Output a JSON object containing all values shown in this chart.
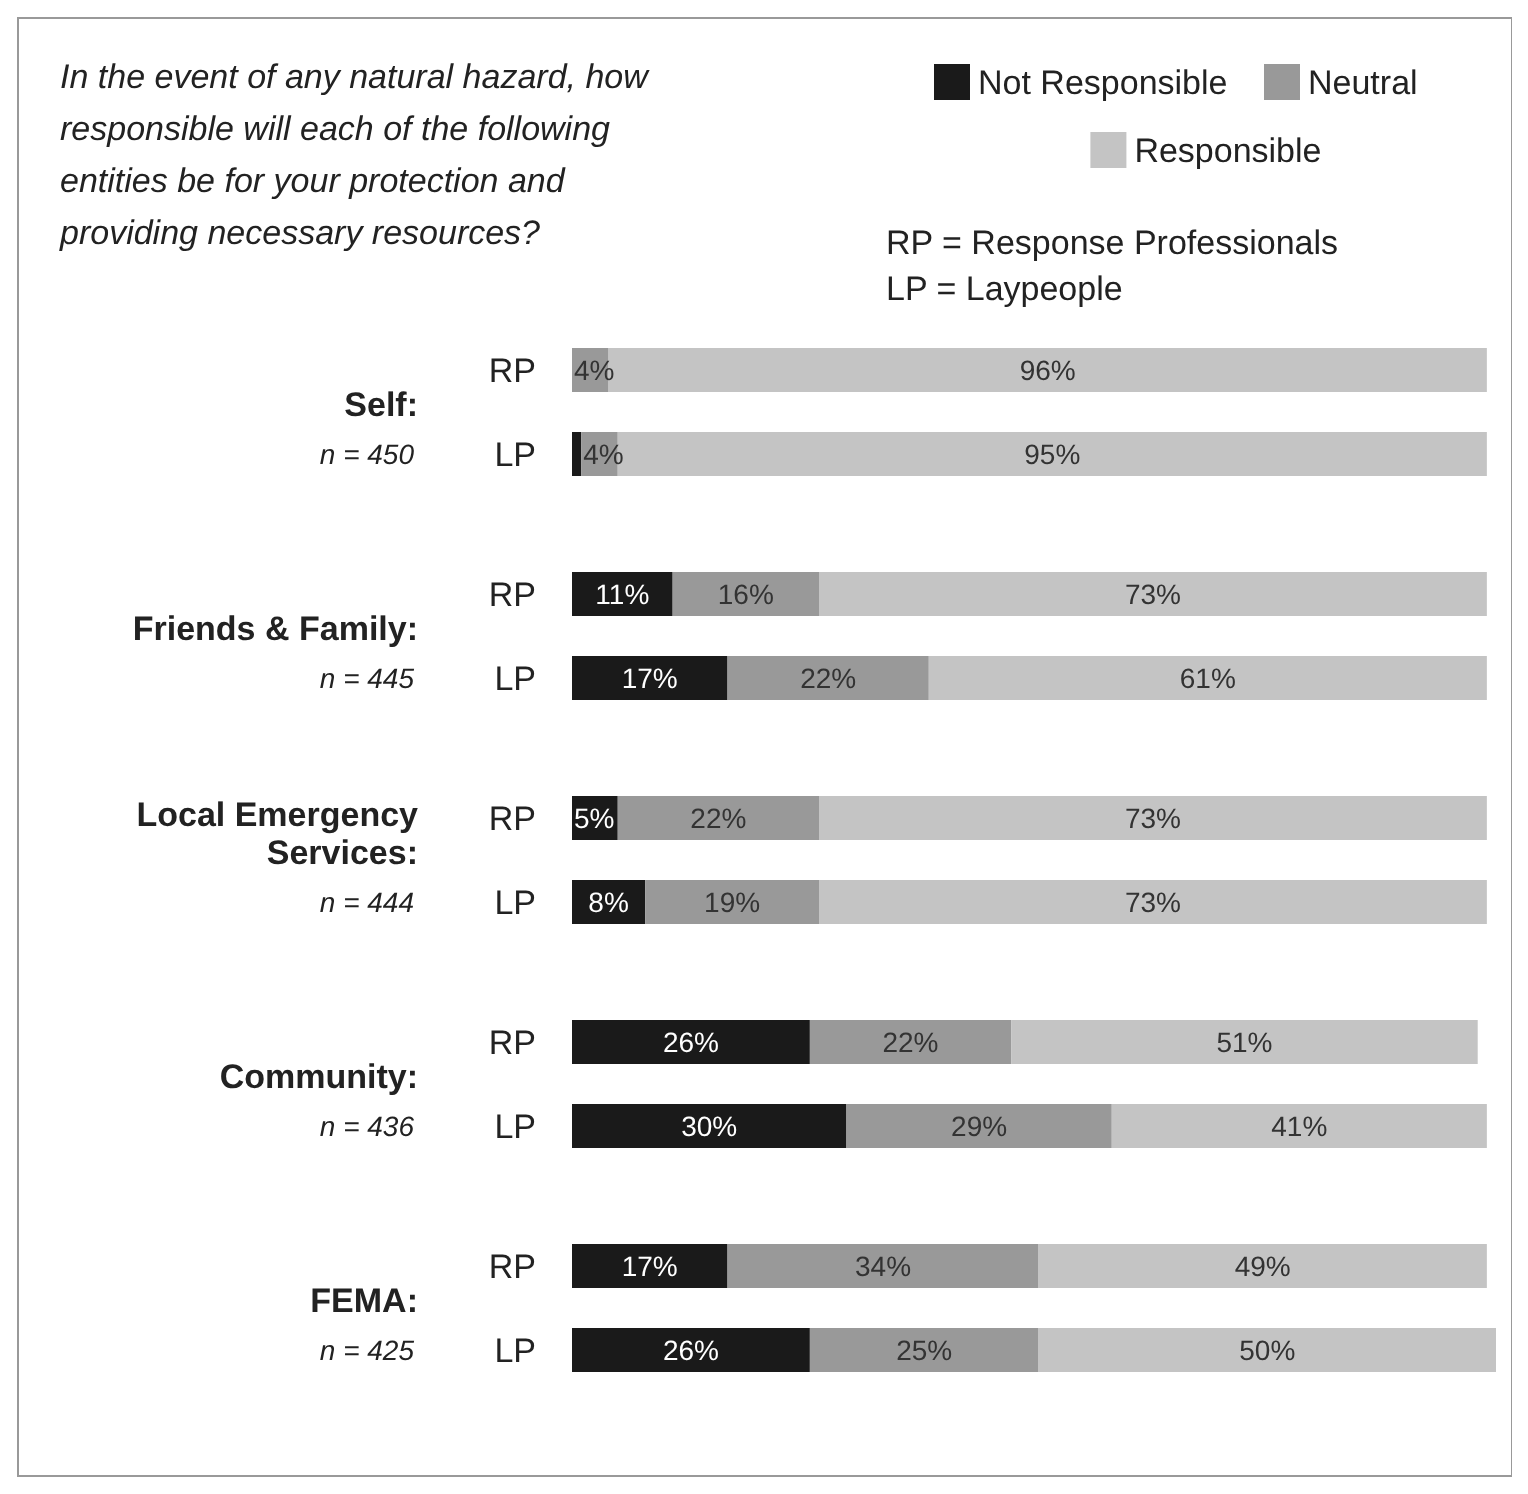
{
  "chart_data": {
    "type": "bar",
    "orientation": "horizontal",
    "stacked": true,
    "title": "In the event of any natural hazard, how responsible will each of the following entities be for your protection and providing necessary resources?",
    "categories": [
      "RP",
      "LP",
      "RP",
      "LP",
      "RP",
      "LP",
      "RP",
      "LP",
      "RP",
      "LP"
    ],
    "series": [
      {
        "name": "Not Responsible",
        "color": "#1a1a1a",
        "values": [
          null,
          1,
          11,
          17,
          5,
          8,
          26,
          30,
          17,
          26
        ],
        "value_labels": [
          null,
          null,
          "11%",
          "17%",
          "5%",
          "8%",
          "26%",
          "30%",
          "17%",
          "26%"
        ]
      },
      {
        "name": "Neutral",
        "color": "#999999",
        "values": [
          4,
          4,
          16,
          22,
          22,
          19,
          22,
          29,
          34,
          25
        ],
        "value_labels": [
          "4%",
          "4%",
          "16%",
          "22%",
          "22%",
          "19%",
          "22%",
          "29%",
          "34%",
          "25%"
        ]
      },
      {
        "name": "Responsible",
        "color": "#c4c4c4",
        "values": [
          96,
          95,
          73,
          61,
          73,
          73,
          51,
          41,
          49,
          50
        ],
        "value_labels": [
          "96%",
          "95%",
          "73%",
          "61%",
          "73%",
          "73%",
          "51%",
          "41%",
          "49%",
          "50%"
        ]
      }
    ],
    "legend": "top right",
    "annotations": [
      "RP = Response Professionals",
      "LP = Laypeople",
      "Self:",
      "n = 450",
      "Friends & Family:",
      "n = 445",
      "Local Emergency Services:",
      "n = 444",
      "Community:",
      "n = 436",
      "FEMA:",
      "n = 425"
    ]
  }
}
